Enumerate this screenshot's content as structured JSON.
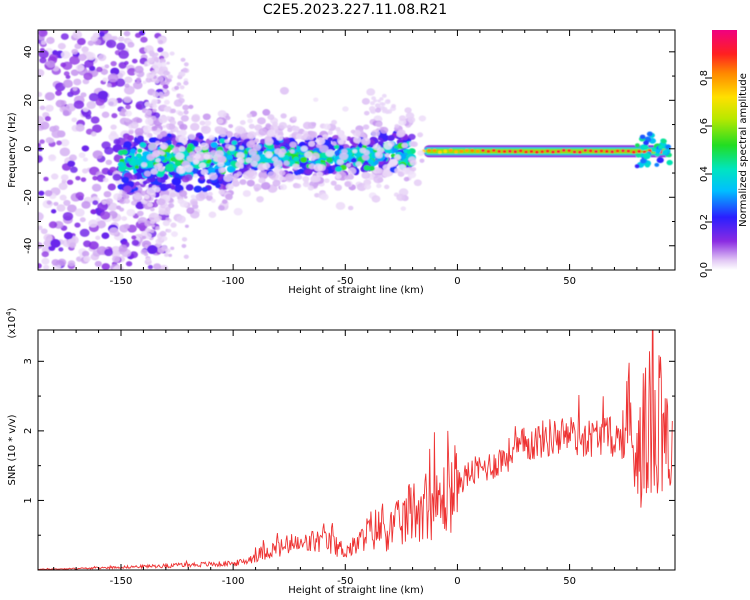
{
  "title": "C2E5.2023.227.11.08.R21",
  "colors": {
    "snr_line": "#ee3333",
    "axis": "#000000",
    "background": "#ffffff"
  },
  "chart_data": [
    {
      "type": "heatmap",
      "title": "C2E5.2023.227.11.08.R21",
      "xlabel": "Height of straight line (km)",
      "ylabel": "Frequency (Hz)",
      "xlim": [
        -187,
        97
      ],
      "ylim": [
        -50,
        49
      ],
      "xticks": [
        -150,
        -100,
        -50,
        0,
        50
      ],
      "yticks": [
        -40,
        -20,
        0,
        20,
        40
      ],
      "grid": false,
      "colorbar": {
        "label": "Normalized spectral amplitude",
        "range": [
          0.0,
          1.0
        ],
        "ticks": [
          "0.0",
          "0.2",
          "0.4",
          "0.6",
          "0.8"
        ],
        "colormap": "rainbow (white → violet → blue → cyan → green → yellow → orange → red → magenta)"
      },
      "features": [
        {
          "description": "scattered noise",
          "x_range": [
            -187,
            -140
          ],
          "y_range": [
            -50,
            49
          ],
          "amplitude": 0.05
        },
        {
          "description": "main band",
          "x_range": [
            -150,
            -20
          ],
          "y_center": -3,
          "y_halfwidth": 8,
          "amplitude": 0.3
        },
        {
          "description": "strong stable band",
          "x_range": [
            -15,
            95
          ],
          "y_center": -1,
          "amplitude": 0.9
        },
        {
          "description": "faint excursion",
          "x_range": [
            -38,
            -30
          ],
          "y_range": [
            15,
            22
          ],
          "amplitude": 0.03
        }
      ]
    },
    {
      "type": "line",
      "xlabel": "Height of straight line (km)",
      "ylabel": "SNR (10 * v/v)",
      "multiplier": "(x10^4)",
      "multiplier_base": "(x10",
      "multiplier_exp": "4",
      "xlim": [
        -187,
        97
      ],
      "ylim": [
        0,
        3.45
      ],
      "xticks": [
        -150,
        -100,
        -50,
        0,
        50
      ],
      "yticks": [
        1,
        2,
        3
      ],
      "grid": false,
      "series": [
        {
          "x": [
            -187,
            -170,
            -150,
            -130,
            -115,
            -100,
            -95,
            -90,
            -85,
            -80,
            -75,
            -70,
            -65,
            -60,
            -55,
            -50,
            -45,
            -40,
            -35,
            -30,
            -25,
            -20,
            -17,
            -15,
            -12,
            -10,
            -5,
            0,
            5,
            10,
            15,
            20,
            25,
            30,
            35,
            40,
            45,
            50,
            55,
            60,
            65,
            70,
            75,
            80,
            85,
            88,
            90,
            92,
            94,
            96
          ],
          "y": [
            0.01,
            0.02,
            0.04,
            0.06,
            0.08,
            0.09,
            0.12,
            0.2,
            0.28,
            0.3,
            0.36,
            0.35,
            0.4,
            0.42,
            0.35,
            0.28,
            0.35,
            0.55,
            0.6,
            0.58,
            0.68,
            0.85,
            0.9,
            0.95,
            0.95,
            0.9,
            1.05,
            1.25,
            1.38,
            1.45,
            1.5,
            1.6,
            1.7,
            1.8,
            1.85,
            1.9,
            1.92,
            1.95,
            1.9,
            1.9,
            1.95,
            1.9,
            1.85,
            1.9,
            2.0,
            2.2,
            2.5,
            2.3,
            1.9,
            1.6
          ]
        }
      ]
    }
  ]
}
